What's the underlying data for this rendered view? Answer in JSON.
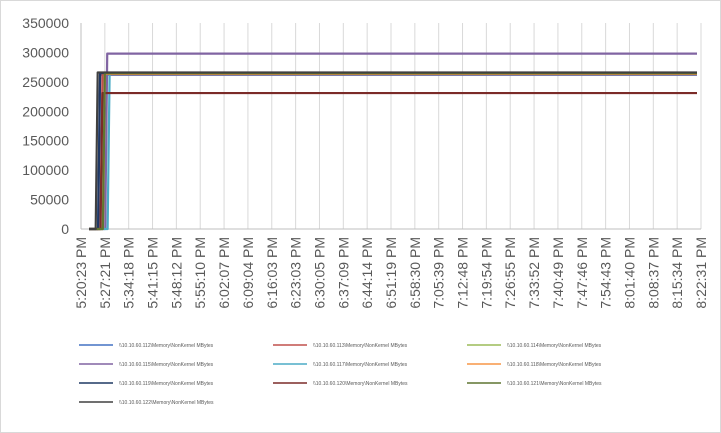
{
  "chart_data": {
    "type": "line",
    "title": "",
    "xlabel": "",
    "ylabel": "",
    "ylim": [
      0,
      350000
    ],
    "yticks": [
      "0",
      "50000",
      "100000",
      "150000",
      "200000",
      "250000",
      "300000",
      "350000"
    ],
    "x_tick_labels": [
      "5:20:23 PM",
      "5:27:21 PM",
      "5:34:18 PM",
      "5:41:15 PM",
      "5:48:12 PM",
      "5:55:10 PM",
      "6:02:07 PM",
      "6:09:04 PM",
      "6:16:03 PM",
      "6:23:03 PM",
      "6:30:05 PM",
      "6:37:09 PM",
      "6:44:14 PM",
      "6:51:19 PM",
      "6:58:30 PM",
      "7:05:39 PM",
      "7:12:48 PM",
      "7:19:54 PM",
      "7:26:55 PM",
      "7:33:52 PM",
      "7:40:49 PM",
      "7:47:46 PM",
      "7:54:43 PM",
      "8:01:40 PM",
      "8:08:37 PM",
      "8:15:34 PM",
      "8:22:31 PM"
    ],
    "grid": "vertical",
    "legend_position": "bottom",
    "series": [
      {
        "name": "\\\\10.10.60.112\\Memory\\NonKernel MBytes",
        "color": "#4472c4",
        "start_index": 0.8,
        "values": [
          0,
          262000
        ]
      },
      {
        "name": "\\\\10.10.60.113\\Memory\\NonKernel MBytes",
        "color": "#c0504d",
        "start_index": 0.9,
        "values": [
          0,
          263000
        ]
      },
      {
        "name": "\\\\10.10.60.114\\Memory\\NonKernel MBytes",
        "color": "#9bbb59",
        "start_index": 1.0,
        "values": [
          0,
          265000
        ]
      },
      {
        "name": "\\\\10.10.60.115\\Memory\\NonKernel MBytes",
        "color": "#8064a2",
        "start_index": 1.1,
        "values": [
          0,
          298000
        ]
      },
      {
        "name": "\\\\10.10.60.117\\Memory\\NonKernel MBytes",
        "color": "#4bacc6",
        "start_index": 1.2,
        "values": [
          0,
          264000
        ]
      },
      {
        "name": "\\\\10.10.60.118\\Memory\\NonKernel MBytes",
        "color": "#f79646",
        "start_index": 1.0,
        "values": [
          0,
          263500
        ]
      },
      {
        "name": "\\\\10.10.60.119\\Memory\\NonKernel MBytes",
        "color": "#1f3864",
        "start_index": 0.8,
        "values": [
          0,
          265000
        ]
      },
      {
        "name": "\\\\10.10.60.120\\Memory\\NonKernel MBytes",
        "color": "#7b2b28",
        "start_index": 0.9,
        "values": [
          0,
          231000
        ]
      },
      {
        "name": "\\\\10.10.60.121\\Memory\\NonKernel MBytes",
        "color": "#5f7530",
        "start_index": 1.0,
        "values": [
          0,
          264500
        ]
      },
      {
        "name": "\\\\10.10.60.122\\Memory\\NonKernel MBytes",
        "color": "#404040",
        "start_index": 0.7,
        "values": [
          0,
          266000
        ]
      }
    ]
  }
}
